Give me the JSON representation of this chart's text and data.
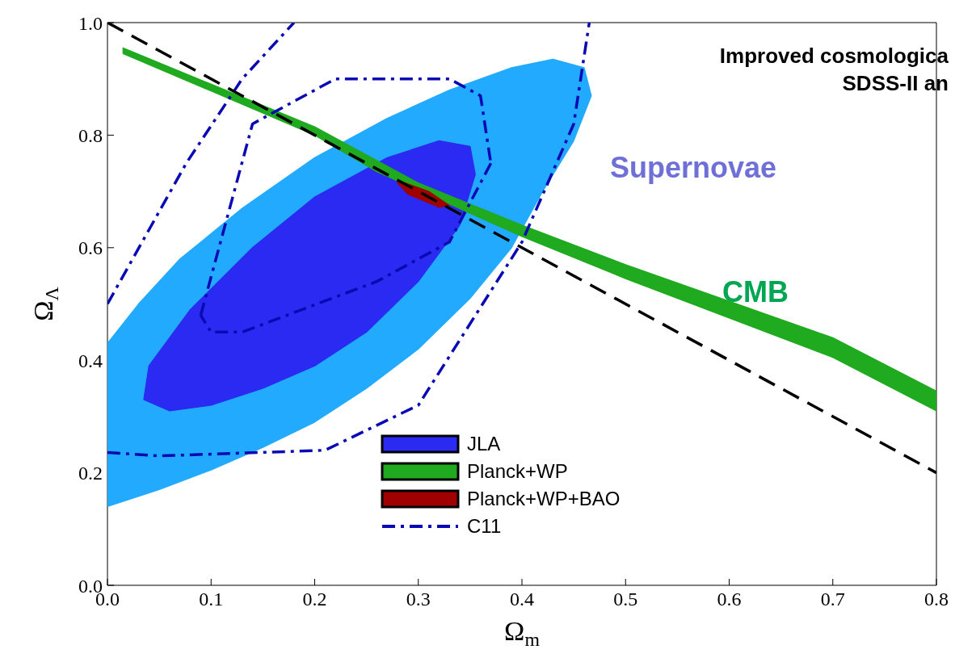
{
  "chart_data": {
    "type": "line",
    "xlabel": "Ω$_{m}$",
    "ylabel": "Ω$_{Λ}$",
    "xlim": [
      0,
      0.8
    ],
    "ylim": [
      0,
      1
    ],
    "xticks": [
      {
        "value": 0,
        "label": "0.0"
      },
      {
        "value": 0.1,
        "label": "0.1"
      },
      {
        "value": 0.2,
        "label": "0.2"
      },
      {
        "value": 0.3,
        "label": "0.3"
      },
      {
        "value": 0.4,
        "label": "0.4"
      },
      {
        "value": 0.5,
        "label": "0.5"
      },
      {
        "value": 0.6,
        "label": "0.6"
      },
      {
        "value": 0.7,
        "label": "0.7"
      },
      {
        "value": 0.8,
        "label": "0.8"
      }
    ],
    "yticks": [
      {
        "value": 0,
        "label": "0.0"
      },
      {
        "value": 0.2,
        "label": "0.2"
      },
      {
        "value": 0.4,
        "label": "0.4"
      },
      {
        "value": 0.6,
        "label": "0.6"
      },
      {
        "value": 0.8,
        "label": "0.8"
      },
      {
        "value": 1,
        "label": "1.0"
      }
    ],
    "legend": "bottom",
    "marker": "none",
    "annotations": [
      "Supernovae",
      "CMB",
      "Improved cosmologica",
      "SDSS-II an"
    ],
    "series": [
      {
        "type": "area",
        "color": "#22aaff",
        "x": [
          0.0,
          0.05,
          0.1,
          0.15,
          0.2,
          0.25,
          0.3,
          0.35,
          0.39,
          0.42,
          0.45,
          0.467,
          0.46,
          0.43,
          0.39,
          0.33,
          0.27,
          0.2,
          0.13,
          0.07,
          0.03,
          0.0
        ],
        "values": [
          0.14,
          0.17,
          0.205,
          0.245,
          0.29,
          0.35,
          0.42,
          0.51,
          0.6,
          0.7,
          0.79,
          0.87,
          0.92,
          0.935,
          0.92,
          0.88,
          0.83,
          0.76,
          0.67,
          0.58,
          0.5,
          0.43
        ]
      },
      {
        "name": "JLA",
        "type": "area",
        "color": "#2a2af2",
        "x": [
          0.035,
          0.06,
          0.1,
          0.15,
          0.2,
          0.25,
          0.3,
          0.34,
          0.355,
          0.35,
          0.32,
          0.27,
          0.2,
          0.14,
          0.08,
          0.04
        ],
        "values": [
          0.33,
          0.31,
          0.32,
          0.35,
          0.39,
          0.45,
          0.54,
          0.64,
          0.73,
          0.78,
          0.79,
          0.76,
          0.69,
          0.6,
          0.49,
          0.39
        ]
      },
      {
        "name": "Planck+WP",
        "type": "area",
        "color": "#1faa1f",
        "x": [
          0.015,
          0.2,
          0.3,
          0.4,
          0.5,
          0.6,
          0.7,
          0.8,
          0.8,
          0.7,
          0.6,
          0.5,
          0.4,
          0.26,
          0.2,
          0.015
        ],
        "values": [
          0.955,
          0.815,
          0.715,
          0.64,
          0.57,
          0.505,
          0.44,
          0.345,
          0.31,
          0.405,
          0.475,
          0.545,
          0.62,
          0.735,
          0.8,
          0.945
        ]
      },
      {
        "name": "Planck+WP+BAO",
        "type": "area",
        "color": "#a00000",
        "x": [
          0.28,
          0.31,
          0.33,
          0.32,
          0.29,
          0.28
        ],
        "values": [
          0.72,
          0.7,
          0.675,
          0.672,
          0.695,
          0.715
        ]
      },
      {
        "name": "C11",
        "type": "line",
        "line_style": "dashdot",
        "color": "#0a0ab4",
        "x": [
          0.09,
          0.14,
          0.22,
          0.33,
          0.36,
          0.37
        ],
        "values": [
          0.48,
          0.82,
          0.9,
          0.9,
          0.87,
          0.75
        ]
      },
      {
        "type": "line",
        "line_style": "dashdot",
        "color": "#0a0ab4",
        "x": [
          0.37,
          0.33,
          0.26,
          0.13,
          0.1,
          0.09
        ],
        "values": [
          0.75,
          0.61,
          0.54,
          0.45,
          0.45,
          0.48
        ]
      },
      {
        "type": "line",
        "line_style": "dashdot",
        "color": "#0a0ab4",
        "x": [
          0.0,
          0.05,
          0.21,
          0.3,
          0.4,
          0.45,
          0.465
        ],
        "values": [
          0.236,
          0.23,
          0.24,
          0.32,
          0.61,
          0.82,
          1.0
        ]
      },
      {
        "type": "line",
        "line_style": "dashdot",
        "color": "#0a0ab4",
        "x": [
          0.0,
          0.076,
          0.13,
          0.18
        ],
        "values": [
          0.5,
          0.75,
          0.9,
          1.0
        ]
      },
      {
        "line_style": "dashed",
        "color": "#000000",
        "x": [
          0.0,
          0.8
        ],
        "values": [
          1.0,
          0.2
        ]
      }
    ]
  }
}
